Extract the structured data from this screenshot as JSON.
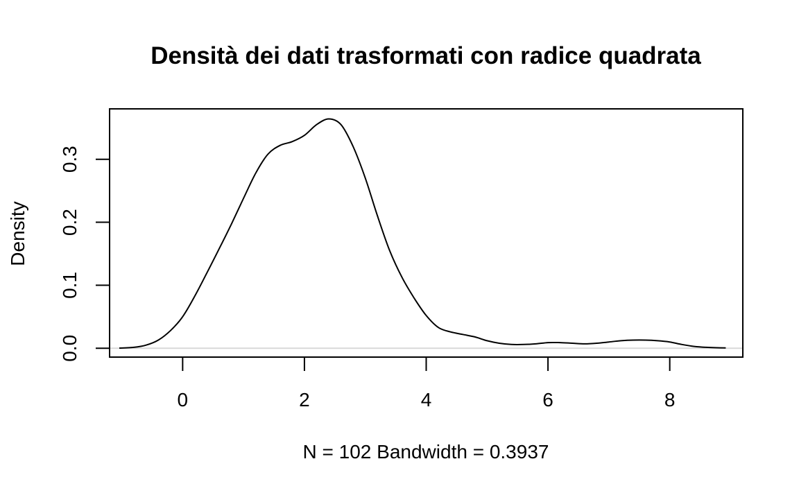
{
  "chart_data": {
    "type": "line",
    "title": "Densità dei dati trasformati con radice quadrata",
    "xlabel": "N = 102   Bandwidth = 0.3937",
    "ylabel": "Density",
    "xlim": [
      -1.2,
      9.2
    ],
    "ylim": [
      -0.014,
      0.38
    ],
    "x_ticks": [
      0,
      2,
      4,
      6,
      8
    ],
    "x_tick_labels": [
      "0",
      "2",
      "4",
      "6",
      "8"
    ],
    "y_ticks": [
      0.0,
      0.1,
      0.2,
      0.3
    ],
    "y_tick_labels": [
      "0.0",
      "0.1",
      "0.2",
      "0.3"
    ],
    "baseline": 0,
    "grid": false,
    "colors": {
      "line": "#000000",
      "baseline": "#d9d9d9",
      "frame": "#000000"
    },
    "series": [
      {
        "x": [
          -1.04,
          -0.8,
          -0.6,
          -0.4,
          -0.2,
          0.0,
          0.2,
          0.4,
          0.6,
          0.8,
          1.0,
          1.2,
          1.4,
          1.6,
          1.8,
          2.0,
          2.2,
          2.4,
          2.6,
          2.8,
          3.0,
          3.2,
          3.4,
          3.6,
          3.8,
          4.0,
          4.2,
          4.4,
          4.6,
          4.8,
          5.0,
          5.2,
          5.4,
          5.6,
          5.8,
          6.0,
          6.2,
          6.4,
          6.6,
          6.8,
          7.0,
          7.2,
          7.4,
          7.6,
          7.8,
          8.0,
          8.2,
          8.4,
          8.6,
          8.92
        ],
        "y": [
          0.0003,
          0.0015,
          0.005,
          0.013,
          0.028,
          0.05,
          0.083,
          0.12,
          0.158,
          0.197,
          0.238,
          0.278,
          0.308,
          0.322,
          0.328,
          0.338,
          0.355,
          0.364,
          0.355,
          0.32,
          0.27,
          0.21,
          0.155,
          0.113,
          0.08,
          0.052,
          0.033,
          0.026,
          0.022,
          0.018,
          0.012,
          0.008,
          0.006,
          0.006,
          0.007,
          0.009,
          0.009,
          0.008,
          0.007,
          0.008,
          0.01,
          0.012,
          0.013,
          0.013,
          0.012,
          0.01,
          0.006,
          0.003,
          0.0015,
          0.0005
        ]
      }
    ]
  }
}
